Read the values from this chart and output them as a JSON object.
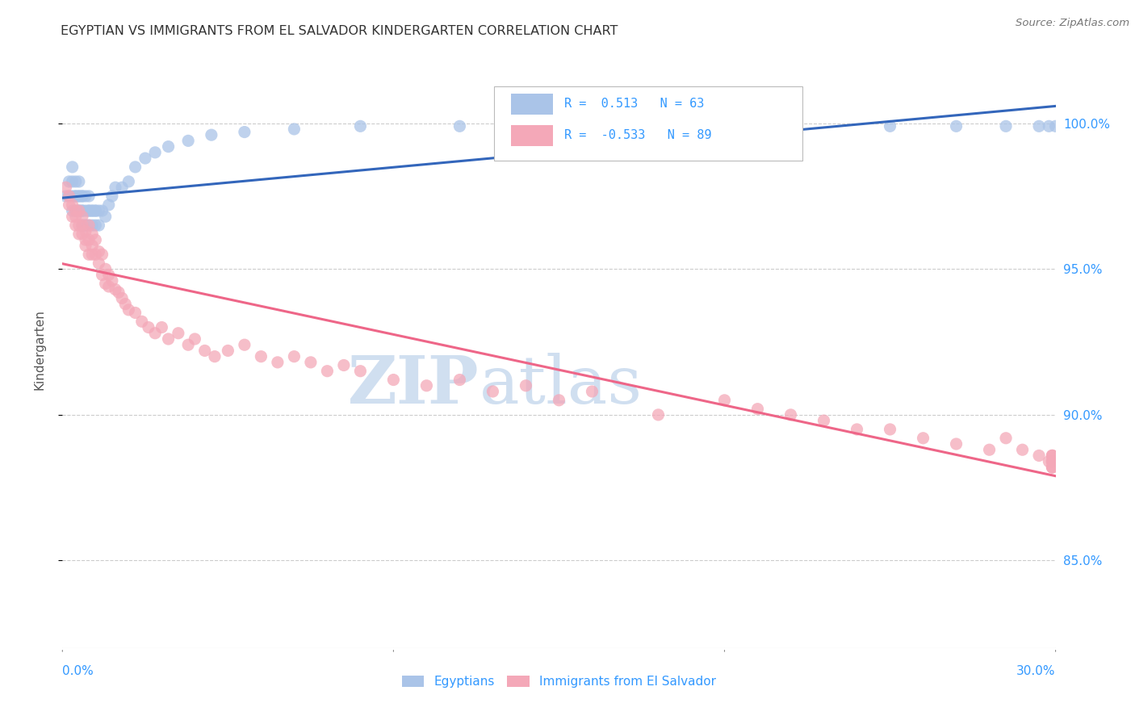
{
  "title": "EGYPTIAN VS IMMIGRANTS FROM EL SALVADOR KINDERGARTEN CORRELATION CHART",
  "source": "Source: ZipAtlas.com",
  "ylabel": "Kindergarten",
  "ytick_labels": [
    "85.0%",
    "90.0%",
    "95.0%",
    "100.0%"
  ],
  "ytick_values": [
    0.85,
    0.9,
    0.95,
    1.0
  ],
  "legend_label1": "Egyptians",
  "legend_label2": "Immigrants from El Salvador",
  "R1": 0.513,
  "N1": 63,
  "R2": -0.533,
  "N2": 89,
  "color1": "#aac4e8",
  "color2": "#f4a8b8",
  "line_color1": "#3366bb",
  "line_color2": "#ee6688",
  "watermark_color": "#d0dff0",
  "bg_color": "#ffffff",
  "grid_color": "#cccccc",
  "title_color": "#333333",
  "axis_label_color": "#3399ff",
  "tick_color": "#888888",
  "xlim": [
    0.0,
    0.3
  ],
  "ylim": [
    0.82,
    1.025
  ],
  "egyptian_x": [
    0.001,
    0.002,
    0.002,
    0.003,
    0.003,
    0.003,
    0.003,
    0.004,
    0.004,
    0.004,
    0.004,
    0.005,
    0.005,
    0.005,
    0.005,
    0.005,
    0.006,
    0.006,
    0.006,
    0.006,
    0.006,
    0.007,
    0.007,
    0.007,
    0.007,
    0.008,
    0.008,
    0.008,
    0.008,
    0.009,
    0.009,
    0.009,
    0.01,
    0.01,
    0.01,
    0.011,
    0.011,
    0.012,
    0.013,
    0.014,
    0.015,
    0.016,
    0.018,
    0.02,
    0.022,
    0.025,
    0.028,
    0.032,
    0.038,
    0.045,
    0.055,
    0.07,
    0.09,
    0.12,
    0.15,
    0.19,
    0.22,
    0.25,
    0.27,
    0.285,
    0.295,
    0.298,
    0.3
  ],
  "egyptian_y": [
    0.975,
    0.98,
    0.975,
    0.97,
    0.975,
    0.98,
    0.985,
    0.975,
    0.98,
    0.97,
    0.975,
    0.975,
    0.97,
    0.975,
    0.98,
    0.97,
    0.975,
    0.97,
    0.975,
    0.97,
    0.965,
    0.965,
    0.97,
    0.965,
    0.975,
    0.97,
    0.965,
    0.975,
    0.97,
    0.97,
    0.965,
    0.97,
    0.97,
    0.965,
    0.97,
    0.97,
    0.965,
    0.97,
    0.968,
    0.972,
    0.975,
    0.978,
    0.978,
    0.98,
    0.985,
    0.988,
    0.99,
    0.992,
    0.994,
    0.996,
    0.997,
    0.998,
    0.999,
    0.999,
    0.999,
    0.999,
    0.999,
    0.999,
    0.999,
    0.999,
    0.999,
    0.999,
    0.999
  ],
  "salvador_x": [
    0.001,
    0.002,
    0.002,
    0.003,
    0.003,
    0.004,
    0.004,
    0.004,
    0.005,
    0.005,
    0.005,
    0.006,
    0.006,
    0.006,
    0.007,
    0.007,
    0.007,
    0.008,
    0.008,
    0.008,
    0.009,
    0.009,
    0.009,
    0.01,
    0.01,
    0.011,
    0.011,
    0.012,
    0.012,
    0.013,
    0.013,
    0.014,
    0.014,
    0.015,
    0.016,
    0.017,
    0.018,
    0.019,
    0.02,
    0.022,
    0.024,
    0.026,
    0.028,
    0.03,
    0.032,
    0.035,
    0.038,
    0.04,
    0.043,
    0.046,
    0.05,
    0.055,
    0.06,
    0.065,
    0.07,
    0.075,
    0.08,
    0.085,
    0.09,
    0.1,
    0.11,
    0.12,
    0.13,
    0.14,
    0.15,
    0.16,
    0.18,
    0.2,
    0.21,
    0.22,
    0.23,
    0.24,
    0.25,
    0.26,
    0.27,
    0.28,
    0.285,
    0.29,
    0.295,
    0.298,
    0.299,
    0.299,
    0.299,
    0.299,
    0.299,
    0.299,
    0.299,
    0.299,
    0.299
  ],
  "salvador_y": [
    0.978,
    0.975,
    0.972,
    0.972,
    0.968,
    0.97,
    0.965,
    0.968,
    0.97,
    0.965,
    0.962,
    0.968,
    0.962,
    0.965,
    0.96,
    0.963,
    0.958,
    0.965,
    0.96,
    0.955,
    0.958,
    0.962,
    0.955,
    0.96,
    0.955,
    0.956,
    0.952,
    0.955,
    0.948,
    0.95,
    0.945,
    0.948,
    0.944,
    0.946,
    0.943,
    0.942,
    0.94,
    0.938,
    0.936,
    0.935,
    0.932,
    0.93,
    0.928,
    0.93,
    0.926,
    0.928,
    0.924,
    0.926,
    0.922,
    0.92,
    0.922,
    0.924,
    0.92,
    0.918,
    0.92,
    0.918,
    0.915,
    0.917,
    0.915,
    0.912,
    0.91,
    0.912,
    0.908,
    0.91,
    0.905,
    0.908,
    0.9,
    0.905,
    0.902,
    0.9,
    0.898,
    0.895,
    0.895,
    0.892,
    0.89,
    0.888,
    0.892,
    0.888,
    0.886,
    0.884,
    0.886,
    0.884,
    0.882,
    0.886,
    0.884,
    0.882,
    0.886,
    0.884,
    0.882
  ]
}
